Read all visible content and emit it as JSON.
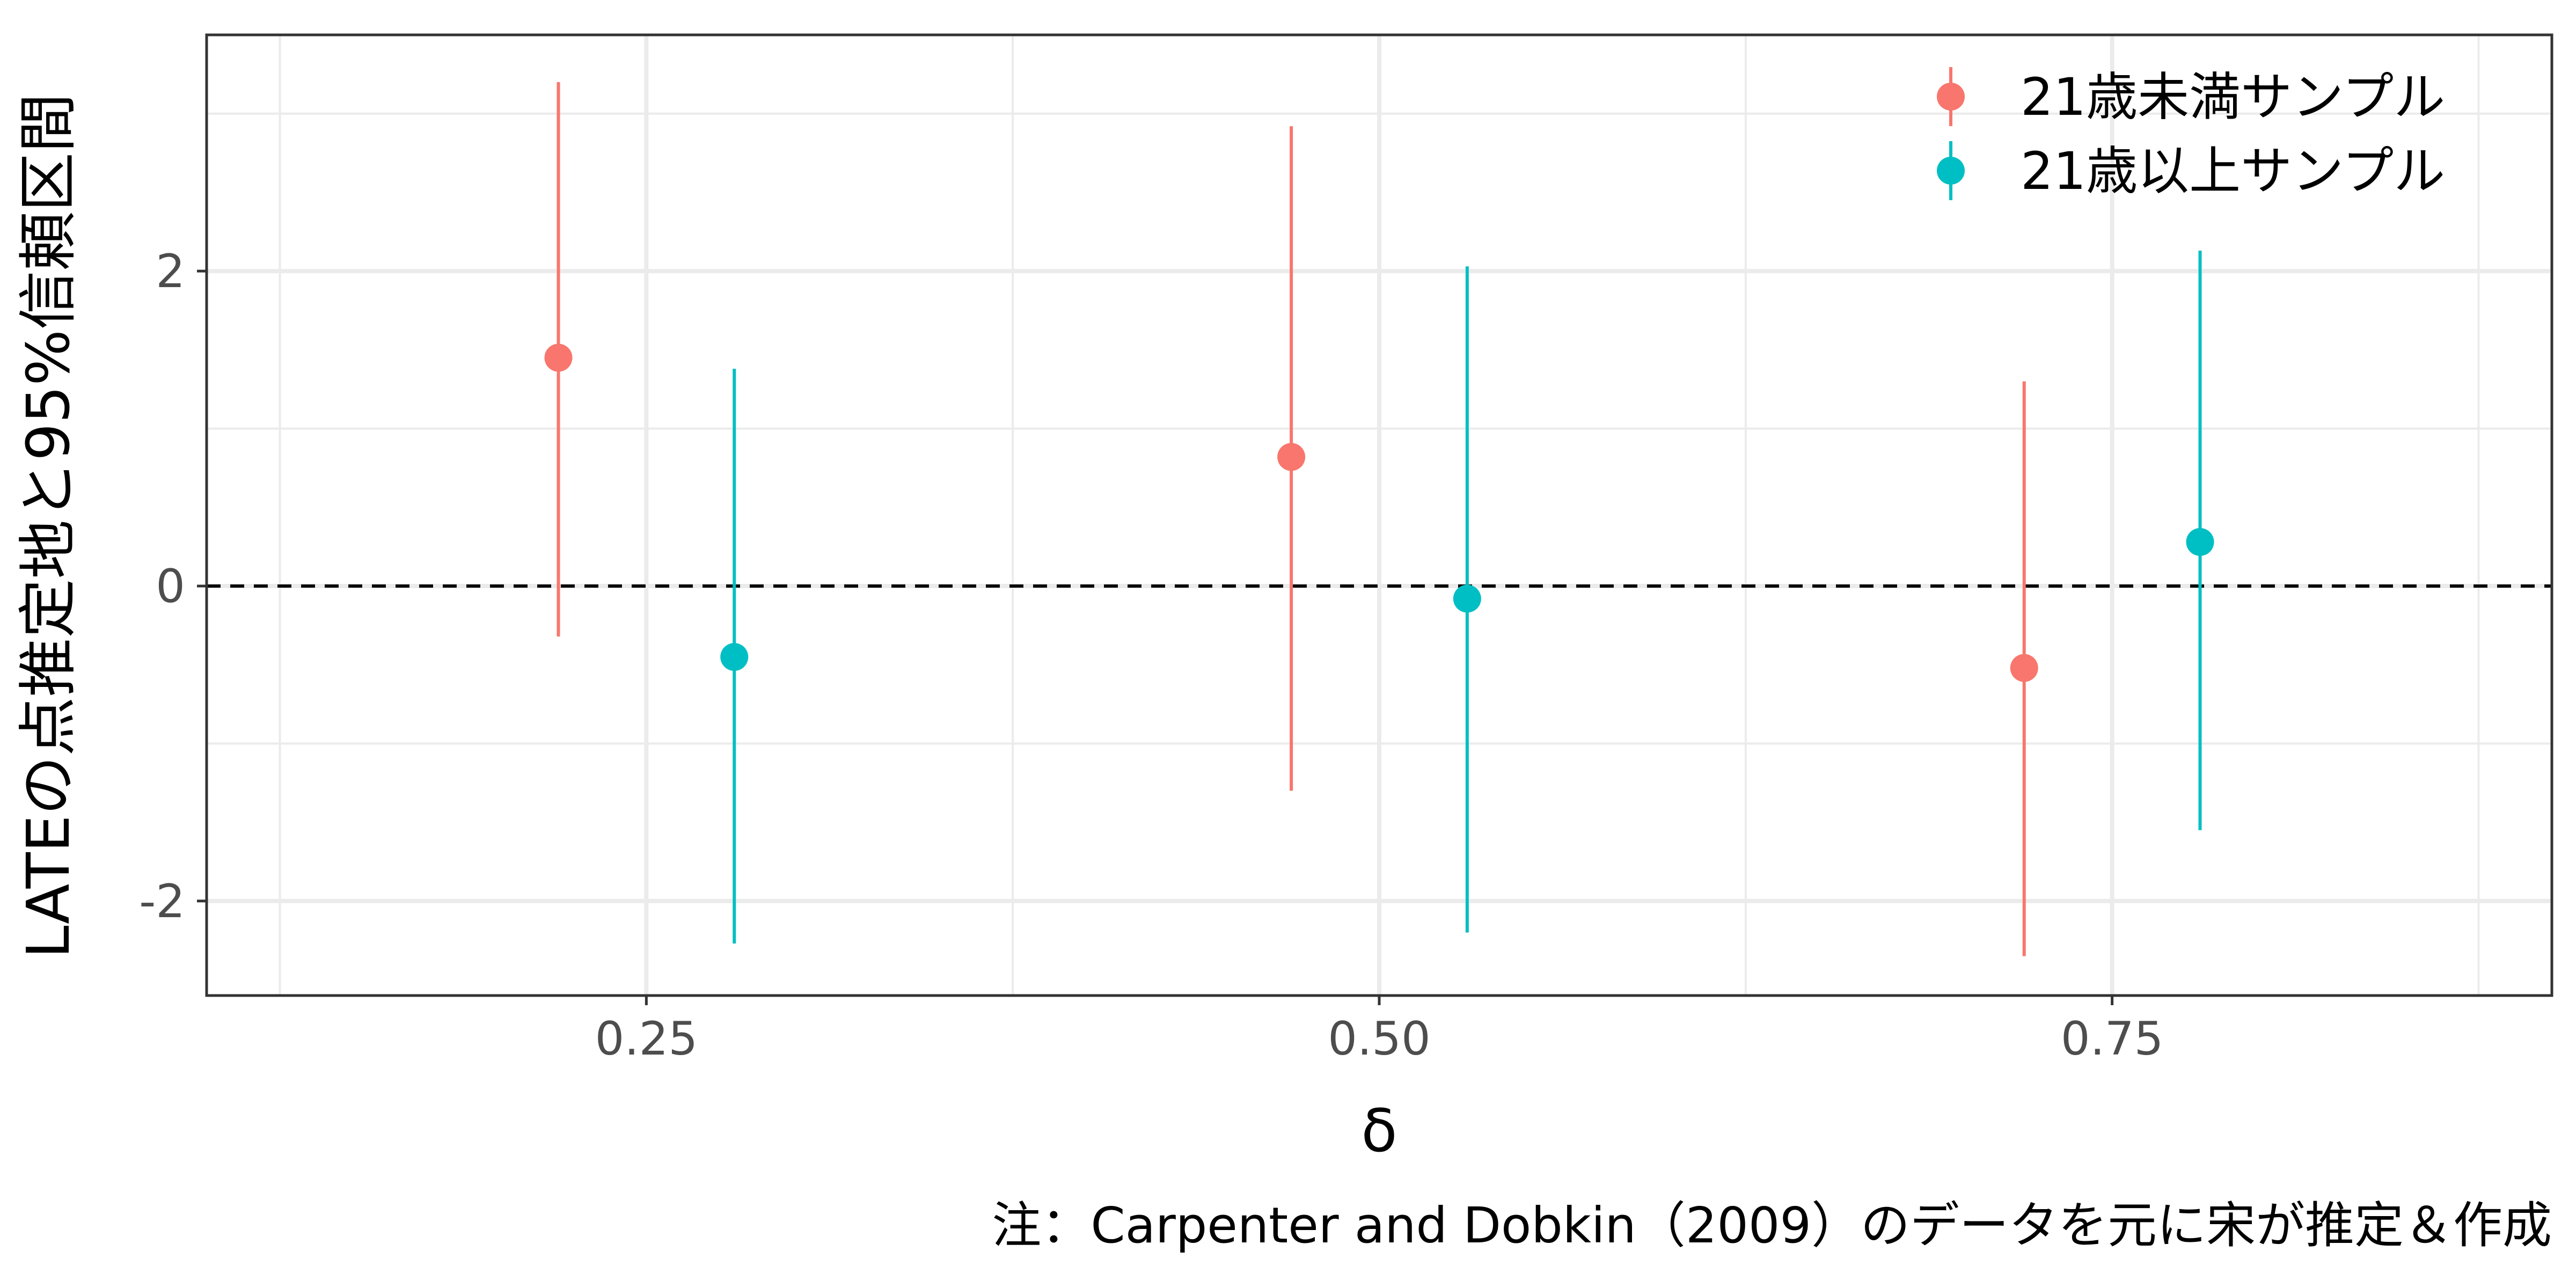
{
  "chart_data": {
    "type": "scatter",
    "subtype": "pointrange",
    "xlabel": "δ",
    "ylabel": "LATEの点推定地と95%信頼区間",
    "caption": "注：Carpenter and Dobkin（2009）のデータを元に宋が推定＆作成",
    "xlim": [
      0.1,
      0.9
    ],
    "ylim": [
      -2.6,
      3.5
    ],
    "x_ticks": [
      {
        "value": 0.25,
        "label": "0.25"
      },
      {
        "value": 0.5,
        "label": "0.50"
      },
      {
        "value": 0.75,
        "label": "0.75"
      }
    ],
    "y_ticks": [
      {
        "value": -2,
        "label": "-2"
      },
      {
        "value": 0,
        "label": "0"
      },
      {
        "value": 2,
        "label": "2"
      }
    ],
    "x_minor_gridlines": [
      0.125,
      0.375,
      0.625,
      0.875
    ],
    "y_minor_gridlines": [
      -1,
      1,
      3
    ],
    "reference_line": {
      "y": 0,
      "style": "dashed",
      "color": "#000000"
    },
    "grid": true,
    "legend_position": "top-right",
    "series": [
      {
        "name": "21歳未満サンプル",
        "color": "#F8766D",
        "points": [
          {
            "x": 0.22,
            "y": 1.45,
            "ymin": -0.32,
            "ymax": 3.2
          },
          {
            "x": 0.47,
            "y": 0.82,
            "ymin": -1.3,
            "ymax": 2.92
          },
          {
            "x": 0.72,
            "y": -0.52,
            "ymin": -2.35,
            "ymax": 1.3
          }
        ]
      },
      {
        "name": "21歳以上サンプル",
        "color": "#00BFC4",
        "points": [
          {
            "x": 0.28,
            "y": -0.45,
            "ymin": -2.27,
            "ymax": 1.38
          },
          {
            "x": 0.53,
            "y": -0.08,
            "ymin": -2.2,
            "ymax": 2.03
          },
          {
            "x": 0.78,
            "y": 0.28,
            "ymin": -1.55,
            "ymax": 2.13
          }
        ]
      }
    ]
  }
}
